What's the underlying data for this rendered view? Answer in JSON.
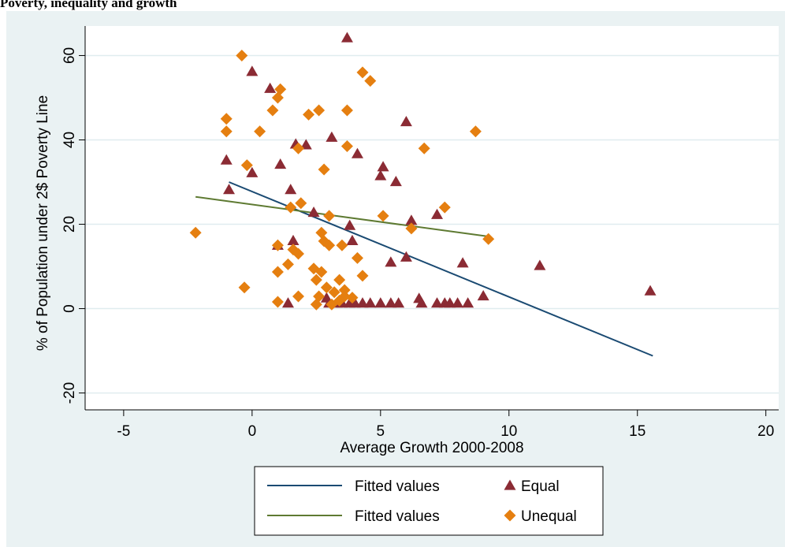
{
  "chart_data": {
    "type": "scatter",
    "title": "Poverty, inequality and growth",
    "xlabel": "Average Growth 2000-2008",
    "ylabel": "% of Population under 2$ Poverty Line",
    "xlim": [
      -6.5,
      20.5
    ],
    "ylim": [
      -24,
      67
    ],
    "xticks": [
      -5,
      0,
      5,
      10,
      15,
      20
    ],
    "yticks": [
      -20,
      0,
      20,
      40,
      60
    ],
    "grid": "horizontal",
    "legend_position": "bottom-center",
    "colors": {
      "background_outer": "#eaf2f3",
      "plot_area": "#ffffff",
      "gridline": "#e0ecef",
      "equal_marker": "#8b2b34",
      "unequal_marker": "#e57f10",
      "fit_equal": "#1a4a72",
      "fit_unequal": "#5e7a32"
    },
    "series": [
      {
        "name": "Fitted values",
        "kind": "line",
        "marker": "none",
        "color": "#1a4a72",
        "x": [
          -0.9,
          15.6
        ],
        "y": [
          30,
          -11.2
        ]
      },
      {
        "name": "Fitted values",
        "kind": "line",
        "marker": "none",
        "color": "#5e7a32",
        "x": [
          -2.2,
          9.2
        ],
        "y": [
          26.5,
          17.1
        ]
      },
      {
        "name": "Equal",
        "kind": "scatter",
        "marker": "triangle",
        "color": "#8b2b34",
        "points": [
          [
            3.7,
            64.2
          ],
          [
            0,
            56.2
          ],
          [
            0.7,
            52.2
          ],
          [
            -1,
            35.2
          ],
          [
            -0.9,
            28.2
          ],
          [
            0,
            32.2
          ],
          [
            1.1,
            34.2
          ],
          [
            1.7,
            39
          ],
          [
            1.5,
            28.2
          ],
          [
            2.1,
            38.8
          ],
          [
            3.1,
            40.6
          ],
          [
            4.1,
            36.7
          ],
          [
            5,
            31.5
          ],
          [
            5.1,
            33.6
          ],
          [
            6,
            44.3
          ],
          [
            5.6,
            30.1
          ],
          [
            7.2,
            22.3
          ],
          [
            6.2,
            20.9
          ],
          [
            3.8,
            19.7
          ],
          [
            3.9,
            16.1
          ],
          [
            2.4,
            22.8
          ],
          [
            1.6,
            16.1
          ],
          [
            1,
            15
          ],
          [
            2.9,
            2.5
          ],
          [
            1.4,
            1.3
          ],
          [
            3.0,
            1.3
          ],
          [
            3.3,
            1.3
          ],
          [
            3.5,
            1.3
          ],
          [
            3.8,
            1.3
          ],
          [
            4,
            1.3
          ],
          [
            4.3,
            1.3
          ],
          [
            4.6,
            1.3
          ],
          [
            5,
            1.3
          ],
          [
            5.4,
            1.3
          ],
          [
            5.7,
            1.3
          ],
          [
            6.5,
            2.4
          ],
          [
            6.6,
            1.3
          ],
          [
            7.2,
            1.3
          ],
          [
            7.5,
            1.3
          ],
          [
            7.7,
            1.3
          ],
          [
            8,
            1.3
          ],
          [
            8.4,
            1.3
          ],
          [
            9,
            3
          ],
          [
            6,
            12.2
          ],
          [
            5.4,
            11
          ],
          [
            8.2,
            10.8
          ],
          [
            11.2,
            10.2
          ],
          [
            15.5,
            4.2
          ]
        ]
      },
      {
        "name": "Unequal",
        "kind": "scatter",
        "marker": "diamond",
        "color": "#e57f10",
        "points": [
          [
            -0.4,
            60
          ],
          [
            1.1,
            52
          ],
          [
            1,
            50
          ],
          [
            0.8,
            47
          ],
          [
            -1,
            45
          ],
          [
            -1,
            42
          ],
          [
            0.3,
            42
          ],
          [
            -0.2,
            34
          ],
          [
            1.8,
            38
          ],
          [
            2.2,
            46
          ],
          [
            2.6,
            47
          ],
          [
            3.7,
            47
          ],
          [
            4.3,
            56
          ],
          [
            4.6,
            54
          ],
          [
            3.7,
            38.5
          ],
          [
            2.8,
            33
          ],
          [
            6.7,
            38
          ],
          [
            8.7,
            42
          ],
          [
            1.5,
            24
          ],
          [
            1.9,
            25
          ],
          [
            3,
            22
          ],
          [
            5.1,
            22
          ],
          [
            7.5,
            24
          ],
          [
            6.2,
            19
          ],
          [
            9.2,
            16.5
          ],
          [
            -2.2,
            18
          ],
          [
            2.7,
            18
          ],
          [
            2.8,
            16
          ],
          [
            3,
            15
          ],
          [
            3.5,
            15
          ],
          [
            1,
            15
          ],
          [
            1.6,
            14
          ],
          [
            1.8,
            13
          ],
          [
            1.4,
            10.5
          ],
          [
            2.4,
            9.5
          ],
          [
            2.7,
            8.7
          ],
          [
            1,
            8.7
          ],
          [
            4.1,
            12
          ],
          [
            4.3,
            7.8
          ],
          [
            3.4,
            6.8
          ],
          [
            2.5,
            6.8
          ],
          [
            3.6,
            4.4
          ],
          [
            2.9,
            5
          ],
          [
            -0.3,
            5
          ],
          [
            3.2,
            3.9
          ],
          [
            3.6,
            2.9
          ],
          [
            2.6,
            2.9
          ],
          [
            1.8,
            2.9
          ],
          [
            3.9,
            2.6
          ],
          [
            3.4,
            1.9
          ],
          [
            1,
            1.6
          ],
          [
            2.5,
            1
          ],
          [
            3.1,
            1
          ]
        ]
      }
    ]
  }
}
